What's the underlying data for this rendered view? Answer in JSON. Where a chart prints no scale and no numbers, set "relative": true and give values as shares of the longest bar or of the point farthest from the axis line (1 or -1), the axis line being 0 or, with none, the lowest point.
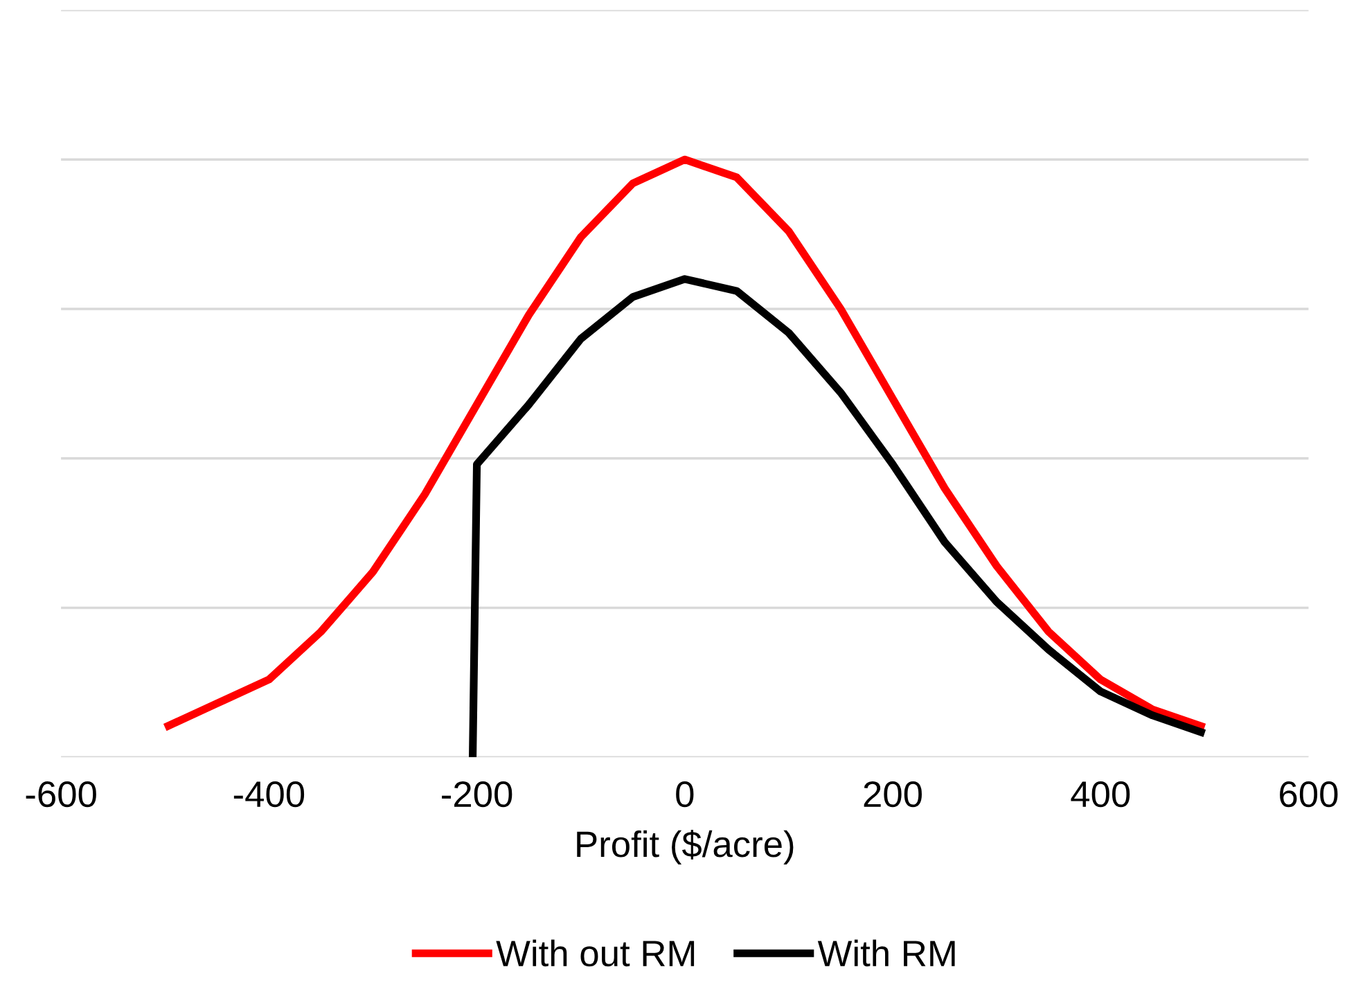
{
  "chart_data": {
    "type": "line",
    "relative": true,
    "xlabel": "Profit ($/acre)",
    "xlim": [
      -600,
      600
    ],
    "xticks": [
      -600,
      -400,
      -200,
      0,
      200,
      400,
      600
    ],
    "tick_labels": "x",
    "grid": "y",
    "legend": "bottom",
    "marker": "none",
    "line_style": "solid",
    "series": [
      {
        "name": "With out RM",
        "color": "#ff0000",
        "x": [
          -500,
          -450,
          -400,
          -350,
          -300,
          -250,
          -200,
          -150,
          -100,
          -50,
          0,
          50,
          100,
          150,
          200,
          250,
          300,
          350,
          400,
          450,
          500
        ],
        "values": [
          0.05,
          0.09,
          0.13,
          0.21,
          0.31,
          0.44,
          0.59,
          0.74,
          0.87,
          0.96,
          1,
          0.97,
          0.88,
          0.75,
          0.6,
          0.45,
          0.32,
          0.21,
          0.13,
          0.08,
          0.05
        ]
      },
      {
        "name": "With RM",
        "color": "#000000",
        "x": [
          -204,
          -200,
          -150,
          -100,
          -50,
          0,
          50,
          100,
          150,
          200,
          250,
          300,
          350,
          400,
          450,
          500
        ],
        "values": [
          0,
          0.49,
          0.59,
          0.7,
          0.77,
          0.8,
          0.78,
          0.71,
          0.61,
          0.49,
          0.36,
          0.26,
          0.18,
          0.11,
          0.07,
          0.04
        ]
      }
    ]
  }
}
